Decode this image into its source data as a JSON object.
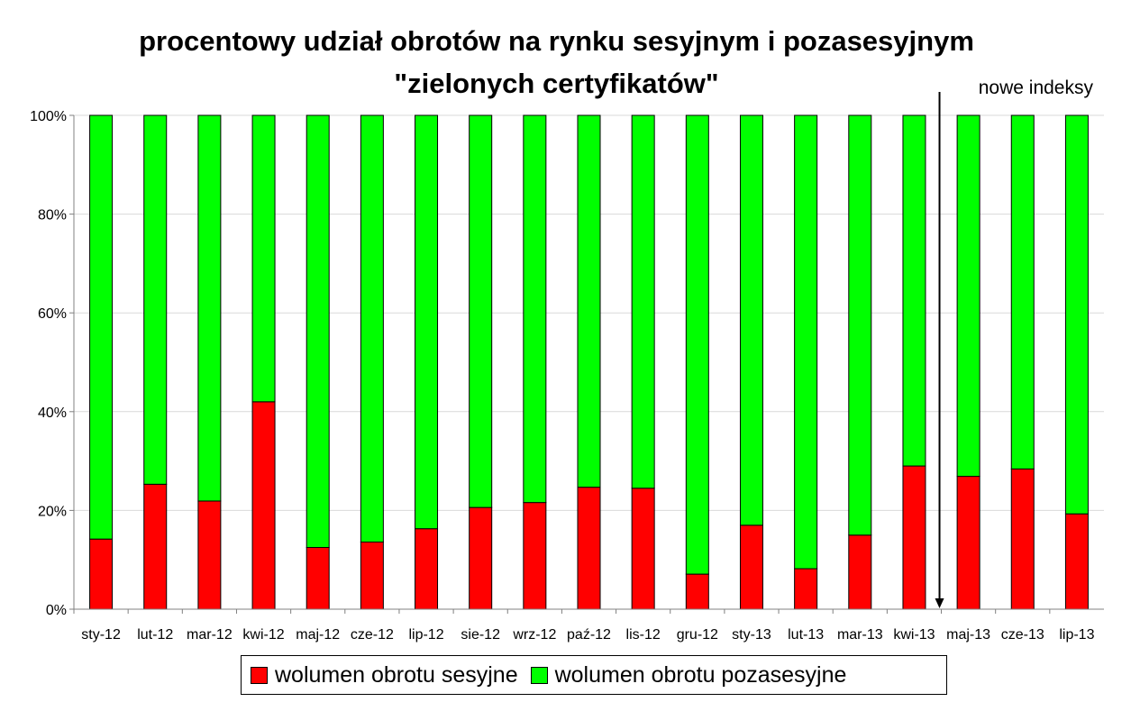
{
  "chart_data": {
    "type": "bar",
    "stacked": true,
    "normalized": true,
    "title_line1": "procentowy udział obrotów na rynku sesyjnym i pozasesyjnym",
    "title_line2": "\"zielonych certyfikatów\"",
    "categories": [
      "sty-12",
      "lut-12",
      "mar-12",
      "kwi-12",
      "maj-12",
      "cze-12",
      "lip-12",
      "sie-12",
      "wrz-12",
      "paź-12",
      "lis-12",
      "gru-12",
      "sty-13",
      "lut-13",
      "mar-13",
      "kwi-13",
      "maj-13",
      "cze-13",
      "lip-13"
    ],
    "series": [
      {
        "name": "wolumen obrotu sesyjne",
        "color": "#ff0000",
        "values": [
          14.2,
          25.3,
          21.9,
          42.0,
          12.5,
          13.6,
          16.3,
          20.6,
          21.6,
          24.7,
          24.5,
          7.1,
          17.0,
          8.2,
          15.0,
          29.0,
          26.9,
          28.4,
          19.3
        ]
      },
      {
        "name": "wolumen obrotu pozasesyjne",
        "color": "#00ff00",
        "values": [
          85.8,
          74.7,
          78.1,
          58.0,
          87.5,
          86.4,
          83.7,
          79.4,
          78.4,
          75.3,
          75.5,
          92.9,
          83.0,
          91.8,
          85.0,
          71.0,
          73.1,
          71.6,
          80.7
        ]
      }
    ],
    "y_ticks": [
      "0%",
      "20%",
      "40%",
      "60%",
      "80%",
      "100%"
    ],
    "ylim": [
      0,
      100
    ],
    "grid": true,
    "legend_position": "bottom",
    "annotation": {
      "text": "nowe indeksy",
      "after_category": "kwi-13"
    }
  }
}
